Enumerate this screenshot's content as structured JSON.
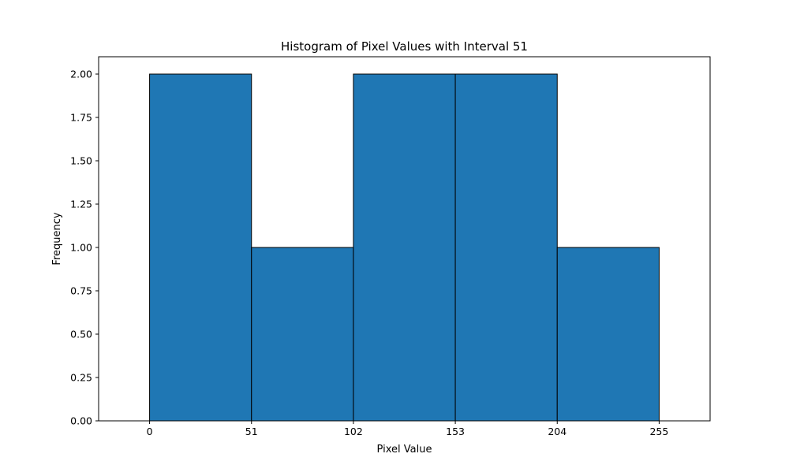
{
  "chart_data": {
    "type": "bar",
    "title": "Histogram of Pixel Values with Interval 51",
    "xlabel": "Pixel Value",
    "ylabel": "Frequency",
    "bins": [
      {
        "start": 0,
        "end": 51,
        "value": 2
      },
      {
        "start": 51,
        "end": 102,
        "value": 1
      },
      {
        "start": 102,
        "end": 153,
        "value": 2
      },
      {
        "start": 153,
        "end": 204,
        "value": 2
      },
      {
        "start": 204,
        "end": 255,
        "value": 1
      }
    ],
    "xlim": [
      -25.5,
      280.5
    ],
    "ylim": [
      0,
      2.1
    ],
    "xticks": [
      0,
      51,
      102,
      153,
      204,
      255
    ],
    "xtick_labels": [
      "0",
      "51",
      "102",
      "153",
      "204",
      "255"
    ],
    "yticks": [
      0,
      0.25,
      0.5,
      0.75,
      1.0,
      1.25,
      1.5,
      1.75,
      2.0
    ],
    "ytick_labels": [
      "0.00",
      "0.25",
      "0.50",
      "0.75",
      "1.00",
      "1.25",
      "1.50",
      "1.75",
      "2.00"
    ],
    "grid": false,
    "bar_color": "#1f77b4",
    "edge_color": "#000000"
  }
}
